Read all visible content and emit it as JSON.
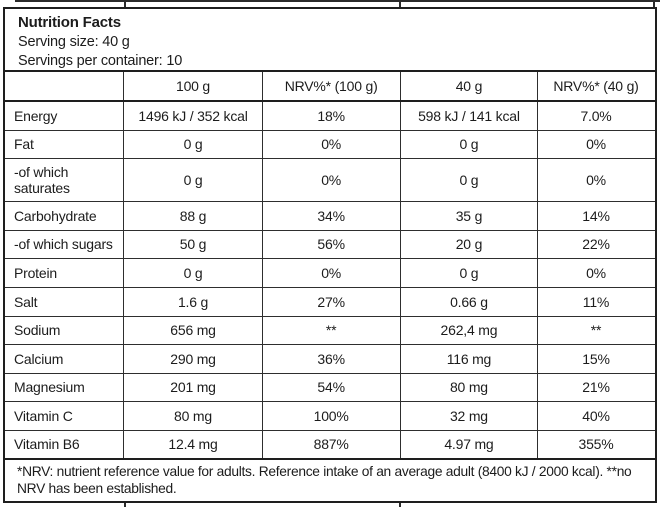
{
  "label": {
    "title": "Nutrition Facts",
    "serving_size": "Serving size: 40 g",
    "servings_per_container": "Servings per container: 10"
  },
  "table": {
    "columns": {
      "name": "",
      "per_100g": "100 g",
      "nrv_100g": "NRV%* (100 g)",
      "per_40g": "40 g",
      "nrv_40g": "NRV%* (40 g)"
    },
    "rows": [
      {
        "name": "Energy",
        "per_100g": "1496 kJ / 352 kcal",
        "nrv_100g": "18%",
        "per_40g": "598 kJ / 141 kcal",
        "nrv_40g": "7.0%"
      },
      {
        "name": "Fat",
        "per_100g": "0 g",
        "nrv_100g": "0%",
        "per_40g": "0 g",
        "nrv_40g": "0%"
      },
      {
        "name": "-of which saturates",
        "per_100g": "0 g",
        "nrv_100g": "0%",
        "per_40g": "0 g",
        "nrv_40g": "0%"
      },
      {
        "name": "Carbohydrate",
        "per_100g": "88 g",
        "nrv_100g": "34%",
        "per_40g": "35 g",
        "nrv_40g": "14%"
      },
      {
        "name": "-of which sugars",
        "per_100g": "50 g",
        "nrv_100g": "56%",
        "per_40g": "20 g",
        "nrv_40g": "22%"
      },
      {
        "name": "Protein",
        "per_100g": "0 g",
        "nrv_100g": "0%",
        "per_40g": "0 g",
        "nrv_40g": "0%"
      },
      {
        "name": "Salt",
        "per_100g": "1.6 g",
        "nrv_100g": "27%",
        "per_40g": "0.66 g",
        "nrv_40g": "11%"
      },
      {
        "name": "Sodium",
        "per_100g": "656 mg",
        "nrv_100g": "**",
        "per_40g": "262,4 mg",
        "nrv_40g": "**"
      },
      {
        "name": "Calcium",
        "per_100g": "290 mg",
        "nrv_100g": "36%",
        "per_40g": "116 mg",
        "nrv_40g": "15%"
      },
      {
        "name": "Magnesium",
        "per_100g": "201 mg",
        "nrv_100g": "54%",
        "per_40g": "80 mg",
        "nrv_40g": "21%"
      },
      {
        "name": "Vitamin C",
        "per_100g": "80 mg",
        "nrv_100g": "100%",
        "per_40g": "32 mg",
        "nrv_40g": "40%"
      },
      {
        "name": "Vitamin B6",
        "per_100g": "12.4 mg",
        "nrv_100g": "887%",
        "per_40g": "4.97 mg",
        "nrv_40g": "355%"
      }
    ],
    "footnote": "*NRV: nutrient reference value for adults. Reference intake of an average adult (8400 kJ / 2000 kcal). **no NRV has been established."
  },
  "colors": {
    "text": "#1c1c1c",
    "border": "#1e1e1e"
  }
}
